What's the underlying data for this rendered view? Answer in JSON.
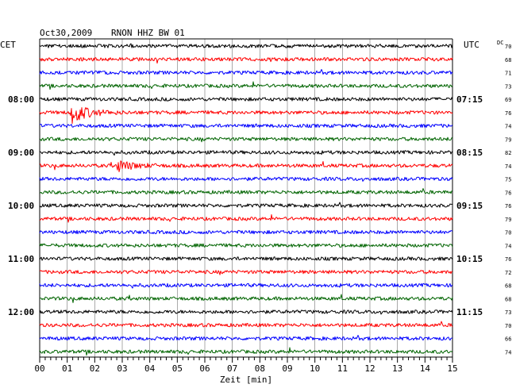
{
  "header": {
    "date": "Oct30,2009",
    "station": "RNON HHZ BW 01"
  },
  "left_timezone": "CET",
  "right_timezone": "UTC",
  "dc_label": "DC",
  "chart_data": {
    "type": "line",
    "title": "Oct30,2009   RNON HHZ BW 01",
    "xlabel": "Zeit [min]",
    "x_ticks": [
      "00",
      "01",
      "02",
      "03",
      "04",
      "05",
      "06",
      "07",
      "08",
      "09",
      "10",
      "11",
      "12",
      "13",
      "14",
      "15"
    ],
    "xlim": [
      0,
      15
    ],
    "grid": true,
    "left_labels": [
      {
        "row": 4,
        "label": "08:00"
      },
      {
        "row": 8,
        "label": "09:00"
      },
      {
        "row": 12,
        "label": "10:00"
      },
      {
        "row": 16,
        "label": "11:00"
      },
      {
        "row": 20,
        "label": "12:00"
      }
    ],
    "right_labels": [
      {
        "row": 4,
        "label": "07:15"
      },
      {
        "row": 8,
        "label": "08:15"
      },
      {
        "row": 12,
        "label": "09:15"
      },
      {
        "row": 16,
        "label": "10:15"
      },
      {
        "row": 20,
        "label": "11:15"
      }
    ],
    "dc_values": [
      "70",
      "68",
      "71",
      "73",
      "69",
      "76",
      "74",
      "79",
      "82",
      "74",
      "75",
      "76",
      "76",
      "79",
      "70",
      "74",
      "76",
      "72",
      "68",
      "68",
      "73",
      "70",
      "66",
      "74"
    ],
    "trace_colors": [
      "#000000",
      "#ff0000",
      "#0000ff",
      "#006400"
    ],
    "events": [
      {
        "row": 5,
        "start_min": 1.1,
        "peak_amp": 1.0
      },
      {
        "row": 9,
        "start_min": 2.75,
        "peak_amp": 0.55
      }
    ]
  }
}
